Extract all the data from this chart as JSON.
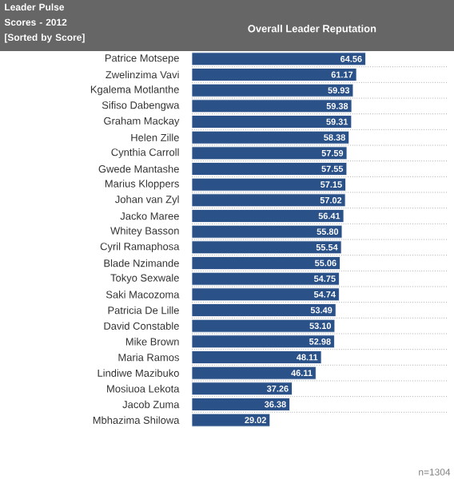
{
  "chart_data": {
    "type": "bar",
    "orientation": "horizontal",
    "title": "Leader Pulse Scores - 2012",
    "subtitle": "[Sorted by Score]",
    "xlabel": "Overall Leader Reputation",
    "categories": [
      "Patrice Motsepe",
      "Zwelinzima Vavi",
      "Kgalema Motlanthe",
      "Sifiso Dabengwa",
      "Graham Mackay",
      "Helen Zille",
      "Cynthia Carroll",
      "Gwede Mantashe",
      "Marius Kloppers",
      "Johan van Zyl",
      "Jacko Maree",
      "Whitey Basson",
      "Cyril Ramaphosa",
      "Blade Nzimande",
      "Tokyo Sexwale",
      "Saki Macozoma",
      "Patricia De Lille",
      "David Constable",
      "Mike Brown",
      "Maria Ramos",
      "Lindiwe Mazibuko",
      "Mosiuoa Lekota",
      "Jacob Zuma",
      "Mbhazima Shilowa"
    ],
    "values": [
      64.56,
      61.17,
      59.93,
      59.38,
      59.31,
      58.38,
      57.59,
      57.55,
      57.15,
      57.02,
      56.41,
      55.8,
      55.54,
      55.06,
      54.75,
      54.74,
      53.49,
      53.1,
      52.98,
      48.11,
      46.11,
      37.26,
      36.38,
      29.02
    ],
    "color": "#2b5189",
    "xlim": [
      0,
      95
    ],
    "tick_labels": "y",
    "value_labels": [
      "64.56",
      "61.17",
      "59.93",
      "59.38",
      "59.31",
      "58.38",
      "57.59",
      "57.55",
      "57.15",
      "57.02",
      "56.41",
      "55.80",
      "55.54",
      "55.06",
      "54.75",
      "54.74",
      "53.49",
      "53.10",
      "52.98",
      "48.11",
      "46.11",
      "37.26",
      "36.38",
      "29.02"
    ],
    "annotations": [
      "n=1304"
    ]
  }
}
